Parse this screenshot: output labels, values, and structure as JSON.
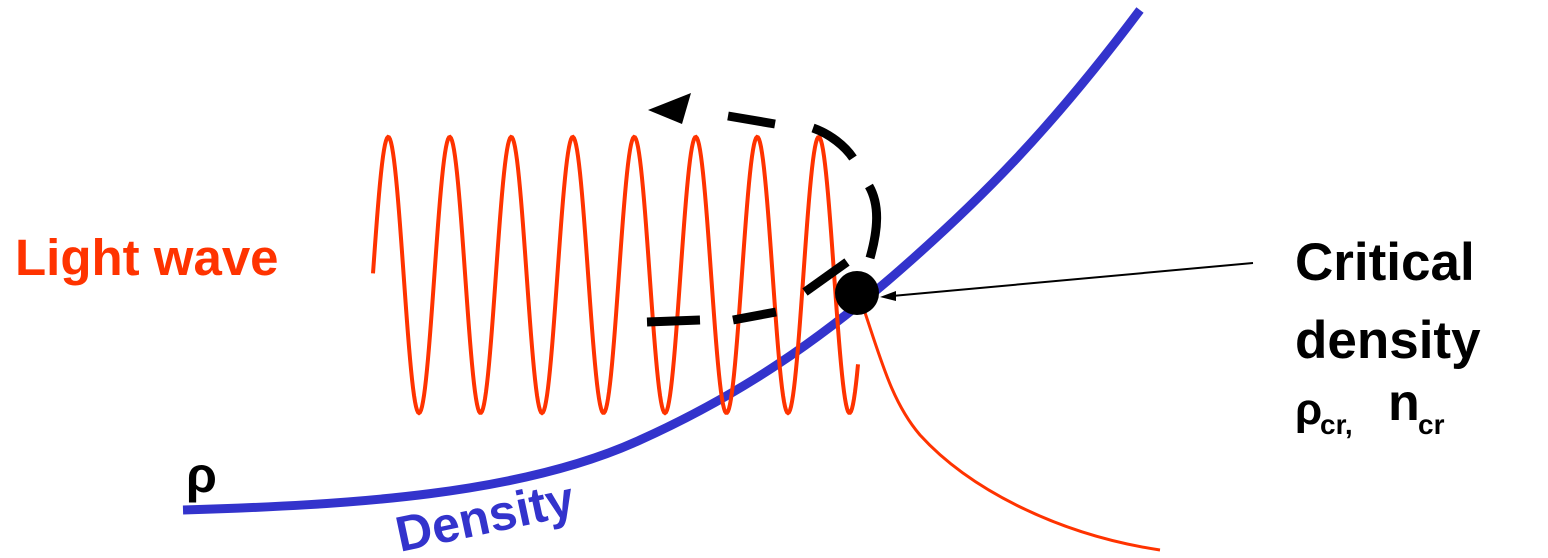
{
  "labels": {
    "light_wave": "Light wave",
    "density_curve": "Density",
    "rho_axis": "ρ",
    "critical_line1": "Critical",
    "critical_line2": "density",
    "critical_rho": "ρ",
    "critical_rho_sub": "cr,",
    "critical_n": "n",
    "critical_n_sub": "cr"
  },
  "colors": {
    "wave": "#ff3300",
    "density": "#3333cc",
    "reflection_arrow": "#000000",
    "critical_point": "#000000"
  }
}
